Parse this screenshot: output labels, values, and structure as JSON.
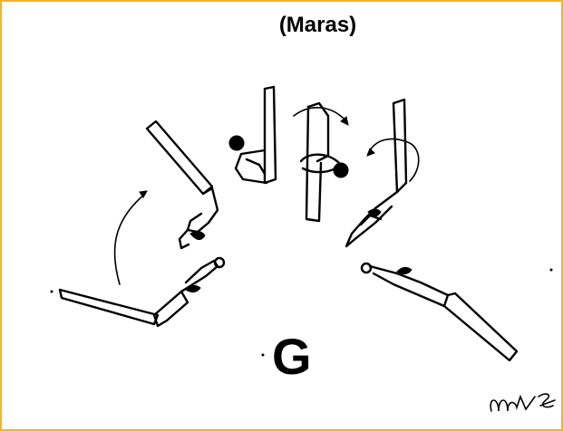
{
  "figure": {
    "title": "(Maras)",
    "difficulty_label": "G"
  },
  "colors": {
    "frame_border": "#f2b233",
    "ink": "#000000",
    "background": "#ffffff"
  }
}
